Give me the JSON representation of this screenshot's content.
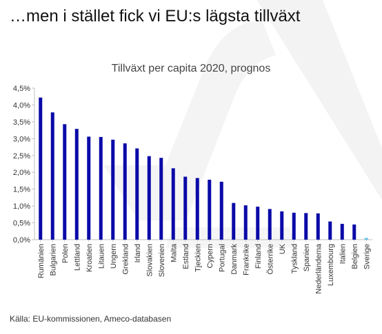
{
  "headline": "…men i stället fick vi EU:s lägsta tillväxt",
  "source": "Källa: EU-kommissionen, Ameco-databasen",
  "colors": {
    "bar": "#0a0aa8",
    "highlight_bar": "#5bc0eb",
    "axis": "#bfbfbf",
    "text": "#333333",
    "watermark": "#f3f3f3"
  },
  "chart_data": {
    "type": "bar",
    "title": "Tillväxt per capita 2020, prognos",
    "xlabel": "",
    "ylabel": "",
    "ylim": [
      0,
      4.5
    ],
    "y_ticks": [
      0,
      0.5,
      1.0,
      1.5,
      2.0,
      2.5,
      3.0,
      3.5,
      4.0,
      4.5
    ],
    "y_tick_labels": [
      "0,0%",
      "0,5%",
      "1,0%",
      "1,5%",
      "2,0%",
      "2,5%",
      "3,0%",
      "3,5%",
      "4,0%",
      "4,5%"
    ],
    "grid": false,
    "highlight_category": "Sverige",
    "categories": [
      "Rumänien",
      "Bulgarien",
      "Polen",
      "Lettland",
      "Kroatien",
      "Litauen",
      "Ungern",
      "Grekland",
      "Irland",
      "Slovakien",
      "Slovenien",
      "Malta",
      "Estland",
      "Tjeckien",
      "Cypern",
      "Portugal",
      "Danmark",
      "Frankrike",
      "Finland",
      "Österrike",
      "UK",
      "Tyskland",
      "Spanien",
      "Nederländerna",
      "Luxembourg",
      "Italien",
      "Belgien",
      "Sverige"
    ],
    "values": [
      4.22,
      3.78,
      3.43,
      3.29,
      3.06,
      3.05,
      2.97,
      2.86,
      2.71,
      2.48,
      2.43,
      2.12,
      1.87,
      1.83,
      1.78,
      1.72,
      1.09,
      1.02,
      0.98,
      0.91,
      0.84,
      0.8,
      0.79,
      0.78,
      0.54,
      0.47,
      0.45,
      0.05
    ]
  }
}
